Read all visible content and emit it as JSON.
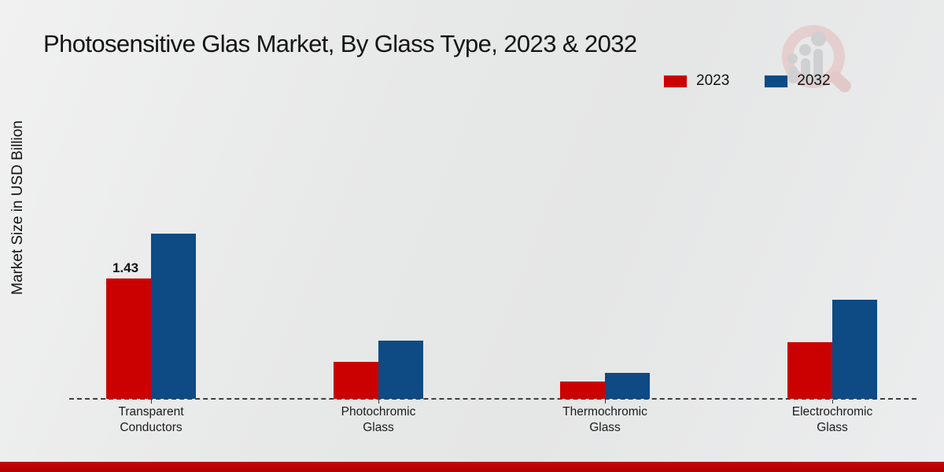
{
  "title": "Photosensitive Glas Market, By Glass Type, 2023 & 2032",
  "ylabel": "Market Size in USD Billion",
  "colors": {
    "series_2023": "#cb0101",
    "series_2032": "#0e4a84",
    "baseline": "#3e3e3e",
    "bottom_strip": "#c00404",
    "background": "#e8e9e9"
  },
  "chart_data": {
    "type": "bar",
    "title": "Photosensitive Glas Market, By Glass Type, 2023 & 2032",
    "ylabel": "Market Size in USD Billion",
    "xlabel": "",
    "categories": [
      "Transparent\nConductors",
      "Photochromic\nGlass",
      "Thermochromic\nGlass",
      "Electrochromic\nGlass"
    ],
    "series": [
      {
        "name": "2023",
        "color": "#cb0101",
        "values": [
          1.43,
          0.44,
          0.21,
          0.67
        ],
        "labels": [
          "1.43",
          "",
          "",
          ""
        ]
      },
      {
        "name": "2032",
        "color": "#0e4a84",
        "values": [
          1.96,
          0.69,
          0.31,
          1.18
        ],
        "labels": [
          "",
          "",
          "",
          ""
        ]
      }
    ],
    "ylim": [
      0,
      2.2
    ],
    "grid": false,
    "legend_position": "top-right",
    "baseline_style": "dashed",
    "annotations": [
      {
        "text": "1.43",
        "target": "2023 Transparent Conductors"
      }
    ]
  }
}
